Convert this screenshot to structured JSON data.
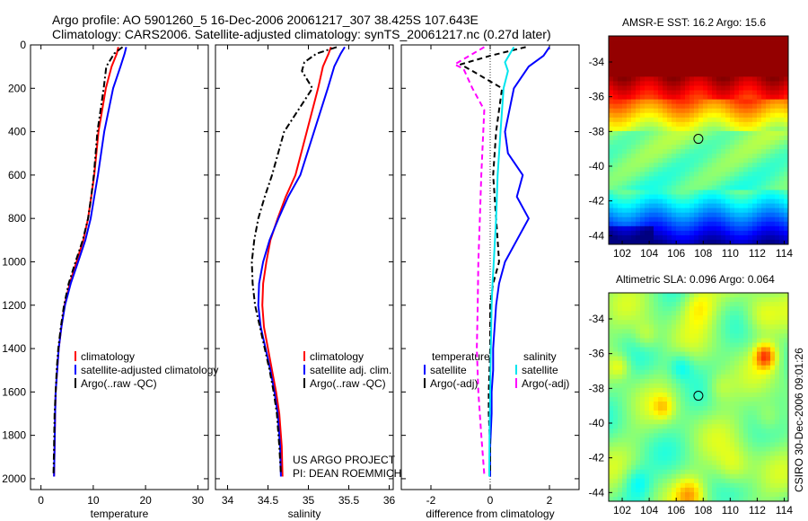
{
  "header": {
    "line1": "Argo profile: AO 5901260_5 16-Dec-2006 20061217_307 38.425S 107.643E",
    "line2": "Climatology: CARS2006. Satellite-adjusted climatology: synTS_20061217.nc (0.27d later)"
  },
  "colors": {
    "climatology": "#ff0000",
    "satellite": "#0000ff",
    "argo": "#000000",
    "salinity_satellite": "#00e5ee",
    "salinity_argo": "#ff00ff"
  },
  "chart_data": [
    {
      "type": "line",
      "id": "temperature",
      "xlabel": "temperature",
      "ylabel": "",
      "xlim": [
        -2,
        32
      ],
      "ylim": [
        2050,
        0
      ],
      "xticks": [
        0,
        10,
        20,
        30
      ],
      "yticks": [
        0,
        200,
        400,
        600,
        800,
        1000,
        1200,
        1400,
        1600,
        1800,
        2000
      ],
      "legend": {
        "placement": "lower-right",
        "entries": [
          "climatology",
          "satellite-adjusted climatology",
          "Argo(..raw -QC)"
        ]
      },
      "series": [
        {
          "name": "climatology",
          "color": "red",
          "style": "solid",
          "x": [
            14.8,
            14.5,
            13.5,
            12.4,
            11.0,
            10.2,
            9.6,
            9.0,
            8.1,
            6.8,
            5.5,
            4.5,
            3.9,
            3.4,
            3.1,
            2.8,
            2.7,
            2.6,
            2.5
          ],
          "y": [
            10,
            40,
            100,
            200,
            400,
            600,
            700,
            800,
            900,
            1000,
            1100,
            1200,
            1300,
            1400,
            1500,
            1600,
            1700,
            1850,
            1990
          ]
        },
        {
          "name": "satellite-adjusted climatology",
          "color": "blue",
          "style": "solid",
          "x": [
            16.3,
            16.0,
            15.2,
            13.8,
            12.1,
            10.9,
            10.2,
            9.5,
            8.5,
            7.1,
            5.7,
            4.6,
            3.9,
            3.4,
            3.1,
            2.8,
            2.7,
            2.6,
            2.5
          ],
          "y": [
            10,
            40,
            100,
            200,
            400,
            600,
            700,
            800,
            900,
            1000,
            1100,
            1200,
            1300,
            1400,
            1500,
            1600,
            1700,
            1850,
            1990
          ]
        },
        {
          "name": "Argo(..raw -QC)",
          "color": "black",
          "style": "dashdot",
          "x": [
            15.6,
            14.0,
            12.5,
            12.0,
            10.8,
            10.1,
            9.6,
            9.0,
            8.0,
            6.6,
            5.3,
            4.4,
            3.8,
            3.3,
            3.0,
            2.8,
            2.6,
            2.5,
            2.4
          ],
          "y": [
            10,
            40,
            100,
            200,
            400,
            600,
            700,
            800,
            900,
            1000,
            1100,
            1200,
            1300,
            1400,
            1500,
            1600,
            1700,
            1850,
            1980
          ]
        }
      ]
    },
    {
      "type": "line",
      "id": "salinity",
      "xlabel": "salinity",
      "ylabel": "",
      "xlim": [
        33.85,
        36.05
      ],
      "ylim": [
        2050,
        0
      ],
      "xticks": [
        34,
        34.5,
        35,
        35.5,
        36
      ],
      "xticklabels": [
        "34",
        "34.5",
        "35",
        "35.5",
        "36"
      ],
      "yticks": [
        0,
        200,
        400,
        600,
        800,
        1000,
        1200,
        1400,
        1600,
        1800,
        2000
      ],
      "legend": {
        "placement": "lower-right",
        "entries": [
          "climatology",
          "satellite adj. clim.",
          "Argo(..raw -QC)"
        ]
      },
      "annotations": [
        "US ARGO PROJECT",
        "PI: DEAN ROEMMICH"
      ],
      "series": [
        {
          "name": "climatology",
          "color": "red",
          "style": "solid",
          "x": [
            35.28,
            35.25,
            35.18,
            35.12,
            34.98,
            34.84,
            34.72,
            34.62,
            34.53,
            34.48,
            34.44,
            34.43,
            34.45,
            34.5,
            34.55,
            34.6,
            34.64,
            34.67,
            34.68
          ],
          "y": [
            10,
            40,
            100,
            200,
            400,
            600,
            700,
            800,
            900,
            1000,
            1100,
            1200,
            1300,
            1400,
            1500,
            1600,
            1700,
            1850,
            1990
          ]
        },
        {
          "name": "satellite adj. clim.",
          "color": "blue",
          "style": "solid",
          "x": [
            35.45,
            35.4,
            35.32,
            35.24,
            35.07,
            34.9,
            34.75,
            34.63,
            34.52,
            34.44,
            34.39,
            34.38,
            34.41,
            34.47,
            34.53,
            34.58,
            34.62,
            34.65,
            34.66
          ],
          "y": [
            10,
            40,
            100,
            200,
            400,
            600,
            700,
            800,
            900,
            1000,
            1100,
            1200,
            1300,
            1400,
            1500,
            1600,
            1700,
            1850,
            1990
          ]
        },
        {
          "name": "Argo(..raw -QC)",
          "color": "black",
          "style": "dashdot",
          "x": [
            35.35,
            35.1,
            34.95,
            34.92,
            35.05,
            34.7,
            34.55,
            34.46,
            34.38,
            34.33,
            34.3,
            34.31,
            34.34,
            34.4,
            34.46,
            34.52,
            34.57,
            34.61,
            34.64,
            34.66
          ],
          "y": [
            10,
            40,
            80,
            120,
            200,
            400,
            600,
            700,
            800,
            900,
            1000,
            1100,
            1200,
            1300,
            1400,
            1500,
            1600,
            1700,
            1850,
            1980
          ]
        }
      ]
    },
    {
      "type": "line",
      "id": "difference",
      "xlabel": "difference from climatology",
      "ylabel": "",
      "xlim": [
        -3,
        3
      ],
      "ylim": [
        2050,
        0
      ],
      "xticks": [
        -2,
        0,
        2
      ],
      "yticks": [
        0,
        200,
        400,
        600,
        800,
        1000,
        1200,
        1400,
        1600,
        1800,
        2000
      ],
      "legend": {
        "placement": "lower-middle",
        "groups": [
          {
            "heading": "temperature",
            "entries": [
              "satellite",
              "Argo(-adj)"
            ]
          },
          {
            "heading": "salinity",
            "entries": [
              "satellite",
              "Argo(-adj)"
            ]
          }
        ]
      },
      "series": [
        {
          "name": "temperature satellite",
          "color": "blue",
          "style": "solid",
          "x": [
            2.0,
            1.8,
            1.3,
            0.8,
            0.5,
            0.6,
            1.1,
            0.9,
            1.3,
            0.9,
            0.5,
            0.3,
            0.2,
            0.1,
            0.1,
            0.05,
            0.05,
            0.0,
            0.0
          ],
          "y": [
            10,
            50,
            100,
            200,
            400,
            500,
            600,
            700,
            800,
            900,
            1000,
            1100,
            1200,
            1400,
            1500,
            1600,
            1700,
            1850,
            1990
          ]
        },
        {
          "name": "temperature Argo(-adj)",
          "color": "black",
          "style": "dashed",
          "x": [
            1.2,
            0.0,
            -1.0,
            -0.6,
            0.4,
            0.2,
            0.1,
            0.2,
            0.25,
            0.3,
            0.1,
            0.0,
            0.0,
            -0.05,
            -0.05,
            0.0,
            0.0
          ],
          "y": [
            10,
            50,
            90,
            120,
            200,
            400,
            600,
            800,
            900,
            1000,
            1100,
            1200,
            1400,
            1600,
            1700,
            1850,
            1980
          ]
        },
        {
          "name": "salinity satellite",
          "color": "cyan",
          "style": "solid",
          "x": [
            0.8,
            0.5,
            0.6,
            0.45,
            0.35,
            0.25,
            0.2,
            0.12,
            0.08,
            0.05,
            0.02,
            0.0,
            -0.02,
            -0.03
          ],
          "y": [
            10,
            80,
            120,
            200,
            400,
            600,
            800,
            1000,
            1100,
            1200,
            1400,
            1600,
            1800,
            1990
          ]
        },
        {
          "name": "salinity Argo(-adj)",
          "color": "magenta",
          "style": "dashed",
          "x": [
            -0.2,
            -1.2,
            -0.9,
            -0.6,
            -0.2,
            -0.3,
            -0.35,
            -0.4,
            -0.42,
            -0.45,
            -0.4,
            -0.3,
            -0.2
          ],
          "y": [
            10,
            90,
            110,
            200,
            300,
            600,
            800,
            1000,
            1200,
            1400,
            1600,
            1800,
            1980
          ]
        }
      ]
    },
    {
      "type": "heatmap",
      "id": "sst-map",
      "title": "AMSR-E SST: 16.2 Argo: 15.6",
      "xlim": [
        101,
        114.3
      ],
      "ylim": [
        -44.5,
        -32.5
      ],
      "xticks": [
        102,
        104,
        106,
        108,
        110,
        112,
        114
      ],
      "yticks": [
        -34,
        -36,
        -38,
        -40,
        -42,
        -44
      ],
      "marker": {
        "lon": 107.643,
        "lat": -38.425
      }
    },
    {
      "type": "heatmap",
      "id": "sla-map",
      "title": "Altimetric SLA: 0.096 Argo: 0.064",
      "xlim": [
        101,
        114.3
      ],
      "ylim": [
        -44.5,
        -32.5
      ],
      "xticks": [
        102,
        104,
        106,
        108,
        110,
        112,
        114
      ],
      "yticks": [
        -34,
        -36,
        -38,
        -40,
        -42,
        -44
      ],
      "marker": {
        "lon": 107.643,
        "lat": -38.425
      }
    }
  ],
  "side_label": "CSIRO 30-Dec-2006 09:01:26"
}
